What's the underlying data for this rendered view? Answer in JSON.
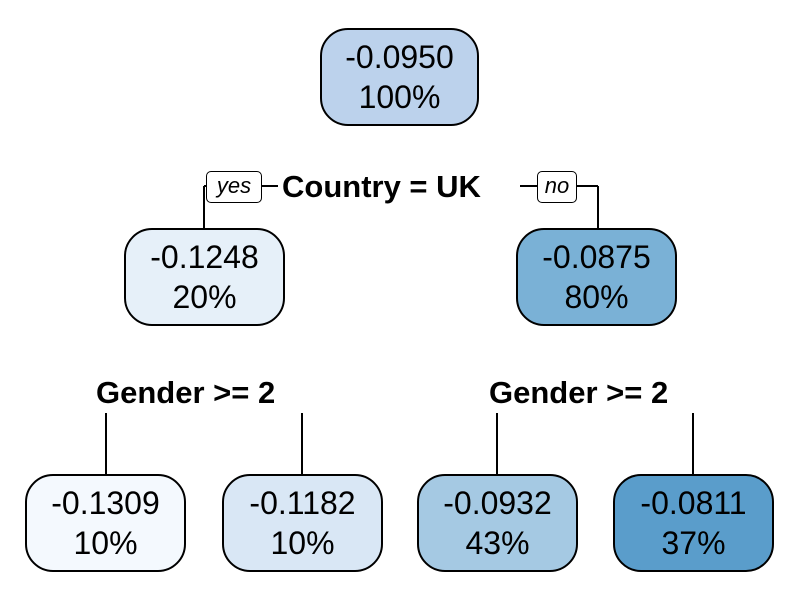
{
  "tree": {
    "root": {
      "value": "-0.0950",
      "percent": "100%",
      "fill": "#bcd2ec"
    },
    "root_split": {
      "label": "Country = UK",
      "yes_label": "yes",
      "no_label": "no"
    },
    "left": {
      "value": "-0.1248",
      "percent": "20%",
      "fill": "#e6f0f9"
    },
    "right": {
      "value": "-0.0875",
      "percent": "80%",
      "fill": "#7ab1d6"
    },
    "left_split": {
      "label": "Gender >= 2"
    },
    "right_split": {
      "label": "Gender >= 2"
    },
    "leaves": [
      {
        "value": "-0.1309",
        "percent": "10%",
        "fill": "#f4f9fe"
      },
      {
        "value": "-0.1182",
        "percent": "10%",
        "fill": "#d9e7f5"
      },
      {
        "value": "-0.0932",
        "percent": "43%",
        "fill": "#a5c9e3"
      },
      {
        "value": "-0.0811",
        "percent": "37%",
        "fill": "#5a9dcb"
      }
    ]
  }
}
